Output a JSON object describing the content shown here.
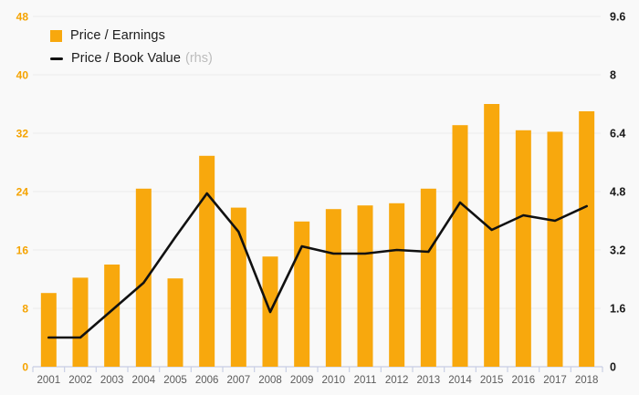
{
  "legend": {
    "items": [
      {
        "label": "Price / Earnings",
        "suffix": "",
        "type": "bar"
      },
      {
        "label": "Price / Book Value",
        "suffix": "(rhs)",
        "type": "line"
      }
    ]
  },
  "chart_data": {
    "type": "bar",
    "subtype": "bar+line combo, dual axis",
    "categories": [
      "2001",
      "2002",
      "2003",
      "2004",
      "2005",
      "2006",
      "2007",
      "2008",
      "2009",
      "2010",
      "2011",
      "2012",
      "2013",
      "2014",
      "2015",
      "2016",
      "2017",
      "2018"
    ],
    "series": [
      {
        "name": "Price / Earnings",
        "type": "bar",
        "axis": "left",
        "color": "#F8A80D",
        "values": [
          10.1,
          12.2,
          14.0,
          24.4,
          12.1,
          28.9,
          21.8,
          15.1,
          19.9,
          21.6,
          22.1,
          22.4,
          24.4,
          33.1,
          36.0,
          32.4,
          32.2,
          35.0
        ]
      },
      {
        "name": "Price / Book Value (rhs)",
        "type": "line",
        "axis": "right",
        "color": "#111111",
        "values": [
          0.8,
          0.8,
          1.55,
          2.3,
          3.55,
          4.75,
          3.7,
          1.5,
          3.3,
          3.1,
          3.1,
          3.2,
          3.15,
          4.5,
          3.75,
          4.15,
          4.0,
          4.4
        ]
      }
    ],
    "title": "",
    "xlabel": "",
    "ylabel": "",
    "left_axis": {
      "min": 0,
      "max": 48,
      "ticks": [
        0,
        8,
        16,
        24,
        32,
        40,
        48
      ],
      "label_color": "#F5A300"
    },
    "right_axis": {
      "min": 0,
      "max": 9.6,
      "ticks": [
        0,
        1.6,
        3.2,
        4.8,
        6.4,
        8,
        9.6
      ],
      "label_color": "#1a1a1a"
    },
    "grid": true,
    "legend_position": "top-left",
    "colors": {
      "background": "#f9f9f9",
      "gridline": "#ececec",
      "baseline": "#c9cfe4",
      "year_label": "#5b5b5b"
    }
  }
}
